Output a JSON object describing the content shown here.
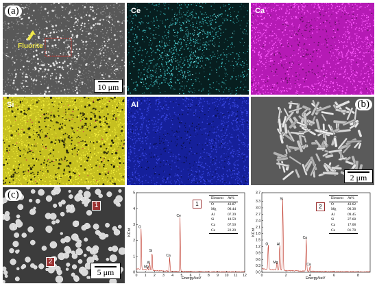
{
  "panels": {
    "a": {
      "label": "(a)",
      "pointer": "Fluorite",
      "scale": "10 μm"
    },
    "ce": {
      "label": "Ce",
      "color": "#4fe0e0"
    },
    "ca": {
      "label": "Ca",
      "color": "#ff3cff"
    },
    "si": {
      "label": "Si",
      "color": "#ffff3c"
    },
    "al": {
      "label": "Al",
      "color": "#4a5cff"
    },
    "b": {
      "label": "(b)",
      "scale": "2 μm"
    },
    "c": {
      "label": "(c)",
      "scale": "5 μm",
      "marker1": "1",
      "marker2": "2"
    }
  },
  "spectrum1": {
    "tag": "1",
    "xlabel": "Energy/keV",
    "ylabel": "KCnt",
    "yticks": [
      "0",
      "1",
      "2",
      "3",
      "4",
      "5"
    ],
    "xticks": [
      "0",
      "1",
      "2",
      "3",
      "4",
      "5",
      "6",
      "7",
      "8",
      "9",
      "10",
      "11",
      "12"
    ],
    "peaks": [
      {
        "label": "O",
        "x": 0.53,
        "y": 2.7
      },
      {
        "label": "Si",
        "x": 1.74,
        "y": 1.2
      },
      {
        "label": "Al",
        "x": 1.49,
        "y": 0.45
      },
      {
        "label": "Mg",
        "x": 1.25,
        "y": 0.2
      },
      {
        "label": "Ca",
        "x": 3.69,
        "y": 0.9
      },
      {
        "label": "Ce",
        "x": 4.84,
        "y": 3.4
      }
    ],
    "table": {
      "headers": [
        "Element",
        "At%"
      ],
      "rows": [
        [
          "O",
          "43.87"
        ],
        [
          "Mg",
          "00.44"
        ],
        [
          "Al",
          "07.39"
        ],
        [
          "Si",
          "18.59"
        ],
        [
          "Ca",
          "07.50"
        ],
        [
          "Ce",
          "22.20"
        ]
      ]
    }
  },
  "spectrum2": {
    "tag": "2",
    "xlabel": "Energy/keV",
    "ylabel": "KCnt",
    "yticks": [
      "0.0",
      "0.3",
      "0.6",
      "0.9",
      "1.2",
      "1.5",
      "1.8",
      "2.1",
      "2.4",
      "2.7",
      "3.0",
      "3.3",
      "3.7"
    ],
    "xticks": [
      "0",
      "2",
      "4",
      "6",
      "8"
    ],
    "peaks": [
      {
        "label": "O",
        "x": 0.53,
        "y": 1.2
      },
      {
        "label": "Al",
        "x": 1.49,
        "y": 1.2
      },
      {
        "label": "Si",
        "x": 1.74,
        "y": 3.3
      },
      {
        "label": "Mg",
        "x": 1.25,
        "y": 0.35
      },
      {
        "label": "Ca",
        "x": 3.69,
        "y": 1.5
      },
      {
        "label": "Ca",
        "x": 4.01,
        "y": 0.25
      }
    ],
    "table": {
      "headers": [
        "Element",
        "At%"
      ],
      "rows": [
        [
          "O",
          "43.62"
        ],
        [
          "Mg",
          "00.38"
        ],
        [
          "Al",
          "09.45"
        ],
        [
          "Si",
          "27.68"
        ],
        [
          "Ca",
          "17.08"
        ],
        [
          "Ce",
          "01.78"
        ]
      ]
    }
  }
}
